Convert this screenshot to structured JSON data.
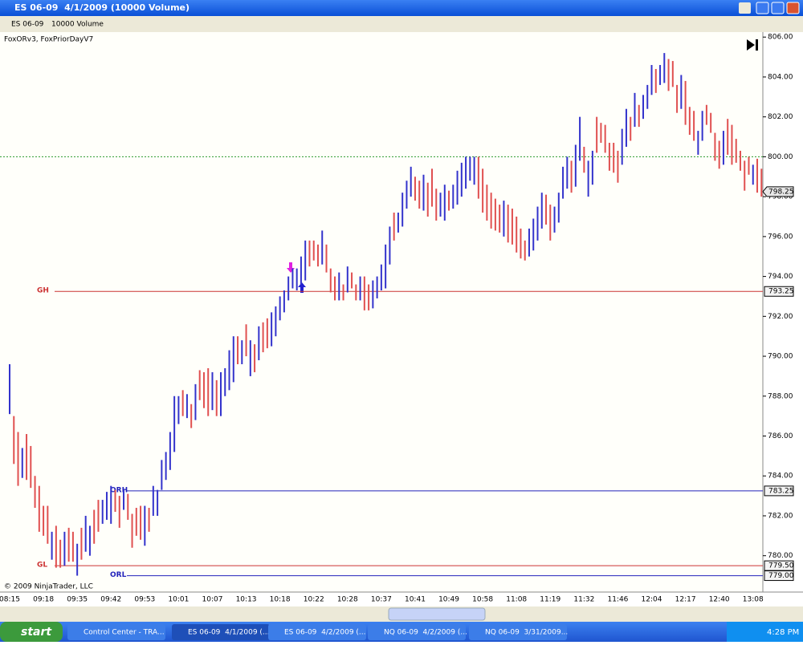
{
  "window": {
    "title": "ES 06-09  4/1/2009 (10000 Volume)",
    "instrument": "ES 06-09",
    "period": "10000 Volume"
  },
  "chart_data": {
    "type": "ohlc",
    "indicators": "FoxORv3, FoxPriorDayV7",
    "copyright": "© 2009 NinjaTrader, LLC",
    "ylim": [
      778.5,
      806.25
    ],
    "yticks": [
      {
        "value": 780,
        "label": "780.00"
      },
      {
        "value": 782,
        "label": "782.00"
      },
      {
        "value": 784,
        "label": "784.00"
      },
      {
        "value": 786,
        "label": "786.00"
      },
      {
        "value": 788,
        "label": "788.00"
      },
      {
        "value": 790,
        "label": "790.00"
      },
      {
        "value": 792,
        "label": "792.00"
      },
      {
        "value": 794,
        "label": "794.00"
      },
      {
        "value": 796,
        "label": "796.00"
      },
      {
        "value": 798,
        "label": "798.00"
      },
      {
        "value": 800,
        "label": "800.00"
      },
      {
        "value": 802,
        "label": "802.00"
      },
      {
        "value": 804,
        "label": "804.00"
      },
      {
        "value": 806,
        "label": "806.00"
      }
    ],
    "categories": [
      "08:15",
      null,
      null,
      null,
      null,
      null,
      null,
      null,
      "09:18",
      null,
      null,
      null,
      null,
      null,
      null,
      null,
      "09:35",
      null,
      null,
      null,
      null,
      null,
      null,
      null,
      "09:42",
      null,
      null,
      null,
      null,
      null,
      null,
      null,
      "09:53",
      null,
      null,
      null,
      null,
      null,
      null,
      null,
      "10:01",
      null,
      null,
      null,
      null,
      null,
      null,
      null,
      "10:07",
      null,
      null,
      null,
      null,
      null,
      null,
      null,
      "10:13",
      null,
      null,
      null,
      null,
      null,
      null,
      null,
      "10:18",
      null,
      null,
      null,
      null,
      null,
      null,
      null,
      "10:22",
      null,
      null,
      null,
      null,
      null,
      null,
      null,
      "10:28",
      null,
      null,
      null,
      null,
      null,
      null,
      null,
      "10:37",
      null,
      null,
      null,
      null,
      null,
      null,
      null,
      "10:41",
      null,
      null,
      null,
      null,
      null,
      null,
      null,
      "10:49",
      null,
      null,
      null,
      null,
      null,
      null,
      null,
      "10:58",
      null,
      null,
      null,
      null,
      null,
      null,
      null,
      "11:08",
      null,
      null,
      null,
      null,
      null,
      null,
      null,
      "11:19",
      null,
      null,
      null,
      null,
      null,
      null,
      null,
      "11:32",
      null,
      null,
      null,
      null,
      null,
      null,
      null,
      "11:46",
      null,
      null,
      null,
      null,
      null,
      null,
      null,
      "12:04",
      null,
      null,
      null,
      null,
      null,
      null,
      null,
      "12:17",
      null,
      null,
      null,
      null,
      null,
      null,
      null,
      "12:40",
      null,
      null,
      null,
      null,
      null,
      null,
      null,
      "13:08",
      null,
      null
    ],
    "high": [
      789.6,
      787.0,
      786.2,
      785.4,
      786.1,
      785.5,
      784.0,
      783.5,
      782.5,
      782.5,
      781.2,
      781.5,
      780.8,
      781.2,
      781.4,
      781.2,
      780.6,
      781.4,
      782.0,
      781.5,
      782.3,
      782.8,
      782.8,
      783.2,
      783.5,
      783.3,
      783.0,
      783.3,
      783.1,
      782.1,
      782.4,
      782.5,
      782.5,
      782.4,
      783.5,
      783.3,
      784.8,
      785.2,
      786.2,
      788.0,
      788.0,
      788.3,
      788.1,
      787.6,
      788.6,
      789.3,
      789.2,
      789.4,
      789.2,
      788.8,
      789.2,
      789.4,
      790.3,
      791.0,
      791.0,
      790.8,
      791.6,
      790.8,
      790.6,
      791.5,
      791.7,
      791.9,
      792.2,
      792.5,
      793.0,
      793.3,
      794.0,
      794.4,
      794.4,
      795.0,
      795.8,
      795.8,
      795.8,
      795.6,
      796.3,
      795.6,
      794.4,
      794.0,
      794.2,
      793.6,
      794.5,
      794.2,
      793.6,
      794.0,
      794.0,
      793.6,
      793.8,
      794.0,
      794.6,
      795.6,
      796.5,
      797.2,
      797.2,
      798.2,
      798.8,
      799.5,
      799.0,
      798.8,
      799.1,
      798.7,
      799.4,
      798.4,
      798.2,
      798.6,
      798.3,
      798.6,
      799.3,
      799.7,
      800.0,
      800.0,
      800.0,
      800.0,
      799.4,
      798.6,
      798.2,
      797.9,
      797.6,
      797.8,
      797.6,
      797.4,
      797.0,
      796.4,
      795.8,
      796.4,
      796.9,
      797.5,
      798.2,
      798.1,
      797.6,
      797.5,
      798.2,
      799.5,
      800.0,
      799.8,
      800.6,
      802.0,
      800.5,
      799.8,
      800.3,
      802.0,
      801.7,
      801.6,
      800.7,
      800.7,
      800.3,
      801.4,
      802.4,
      802.0,
      803.2,
      802.6,
      803.1,
      803.6,
      804.6,
      804.4,
      804.6,
      805.2,
      804.9,
      804.8,
      803.6,
      804.1,
      803.8,
      802.5,
      802.3,
      801.3,
      802.3,
      802.6,
      802.2,
      801.2,
      800.8,
      801.3,
      801.9,
      801.6,
      800.9,
      800.3,
      799.8,
      800.0,
      799.6,
      799.9,
      799.4
    ],
    "low": [
      787.1,
      784.6,
      783.5,
      783.9,
      783.8,
      783.4,
      782.4,
      781.2,
      781.0,
      780.6,
      779.8,
      779.4,
      779.4,
      779.5,
      779.7,
      779.7,
      779.0,
      779.8,
      780.2,
      780.0,
      780.6,
      781.2,
      781.6,
      781.8,
      781.6,
      782.2,
      781.4,
      782.3,
      781.8,
      780.4,
      781.0,
      780.8,
      780.5,
      781.2,
      782.0,
      782.0,
      783.3,
      783.8,
      784.3,
      785.2,
      786.6,
      787.0,
      786.9,
      786.4,
      786.8,
      787.8,
      787.4,
      787.0,
      787.3,
      787.0,
      787.0,
      788.0,
      788.3,
      788.7,
      789.6,
      789.6,
      790.0,
      789.0,
      789.2,
      789.8,
      790.2,
      790.4,
      790.5,
      791.0,
      791.8,
      792.2,
      792.8,
      793.4,
      793.3,
      793.6,
      793.8,
      794.5,
      794.8,
      794.5,
      794.6,
      794.2,
      793.2,
      792.8,
      792.8,
      792.8,
      793.2,
      793.4,
      792.8,
      792.8,
      792.3,
      792.3,
      792.4,
      792.9,
      793.3,
      793.4,
      794.6,
      795.8,
      796.2,
      796.5,
      797.4,
      798.0,
      797.8,
      797.4,
      797.3,
      797.0,
      797.5,
      796.8,
      797.0,
      796.8,
      797.3,
      797.4,
      797.6,
      798.0,
      798.4,
      798.8,
      798.6,
      797.9,
      797.2,
      796.8,
      796.4,
      796.3,
      796.2,
      796.0,
      795.7,
      795.6,
      795.2,
      794.9,
      794.8,
      795.0,
      795.3,
      795.8,
      796.4,
      796.6,
      795.8,
      796.2,
      796.7,
      797.9,
      798.4,
      798.2,
      798.5,
      799.8,
      799.2,
      798.0,
      798.6,
      800.2,
      800.7,
      800.2,
      799.3,
      799.2,
      798.7,
      799.6,
      800.5,
      800.8,
      801.5,
      801.5,
      801.9,
      802.4,
      803.1,
      803.2,
      803.6,
      803.7,
      803.3,
      803.5,
      802.2,
      802.4,
      801.6,
      801.1,
      800.8,
      800.1,
      800.8,
      801.6,
      801.2,
      799.8,
      799.4,
      799.6,
      800.1,
      799.6,
      799.7,
      799.3,
      798.3,
      799.1,
      798.6,
      798.2,
      798.0
    ],
    "direction": [
      "up",
      "down",
      "down",
      "up",
      "down",
      "down",
      "down",
      "down",
      "down",
      "down",
      "up",
      "down",
      "down",
      "up",
      "down",
      "down",
      "up",
      "down",
      "up",
      "up",
      "down",
      "down",
      "up",
      "up",
      "up",
      "down",
      "down",
      "up",
      "down",
      "down",
      "down",
      "down",
      "up",
      "down",
      "up",
      "up",
      "up",
      "up",
      "up",
      "up",
      "up",
      "down",
      "up",
      "down",
      "up",
      "down",
      "down",
      "down",
      "up",
      "down",
      "up",
      "up",
      "up",
      "up",
      "down",
      "up",
      "down",
      "up",
      "down",
      "up",
      "down",
      "down",
      "up",
      "up",
      "up",
      "up",
      "up",
      "up",
      "up",
      "up",
      "up",
      "down",
      "down",
      "down",
      "up",
      "down",
      "down",
      "down",
      "up",
      "down",
      "up",
      "down",
      "down",
      "up",
      "down",
      "down",
      "up",
      "up",
      "up",
      "up",
      "up",
      "down",
      "up",
      "up",
      "up",
      "up",
      "down",
      "down",
      "up",
      "down",
      "down",
      "down",
      "up",
      "up",
      "down",
      "up",
      "up",
      "up",
      "up",
      "up",
      "up",
      "down",
      "down",
      "down",
      "down",
      "down",
      "down",
      "up",
      "down",
      "down",
      "down",
      "down",
      "down",
      "up",
      "up",
      "up",
      "up",
      "down",
      "down",
      "up",
      "up",
      "up",
      "up",
      "down",
      "up",
      "up",
      "down",
      "up",
      "up",
      "down",
      "down",
      "down",
      "down",
      "down",
      "down",
      "up",
      "up",
      "down",
      "up",
      "down",
      "up",
      "up",
      "up",
      "down",
      "up",
      "up",
      "down",
      "down",
      "down",
      "up",
      "down",
      "down",
      "down",
      "up",
      "up",
      "down",
      "down",
      "down",
      "down",
      "up",
      "down",
      "down",
      "down",
      "down",
      "down",
      "down",
      "up",
      "down",
      "down"
    ],
    "up_color": "#3333cc",
    "down_color": "#e05050",
    "levels": [
      {
        "name": "GH",
        "value": 793.25,
        "price_label": "793.25",
        "color": "#cc3333"
      },
      {
        "name": "GL",
        "value": 779.5,
        "price_label": "779.50",
        "color": "#cc3333"
      },
      {
        "name": "ORH",
        "value": 783.25,
        "price_label": "783.25",
        "color": "#2222bb"
      },
      {
        "name": "ORL",
        "value": 779.0,
        "price_label": "779.00",
        "color": "#2222bb"
      }
    ],
    "prior_close": {
      "value": 800.0,
      "color": "#2a9a2a"
    },
    "last_price": {
      "value": 798.25,
      "label": "798.25"
    }
  },
  "taskbar": {
    "start": "start",
    "items": [
      "Control Center - TRA...",
      "ES 06-09  4/1/2009 (...",
      "ES 06-09  4/2/2009 (...",
      "NQ 06-09  4/2/2009 (...",
      "NQ 06-09  3/31/2009..."
    ],
    "clock": "4:28 PM"
  }
}
